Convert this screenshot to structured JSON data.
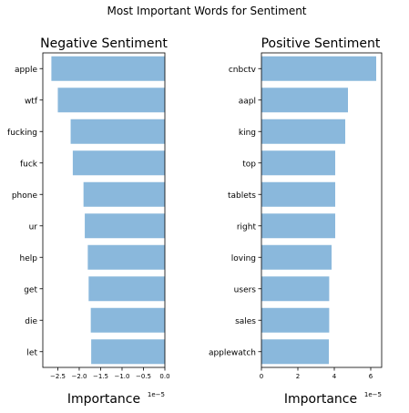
{
  "figure_title": "Most Important Words for Sentiment",
  "bar_color": "#8ab8dc",
  "chart_data": [
    {
      "type": "bar",
      "orientation": "horizontal",
      "title": "Negative Sentiment",
      "xlabel": "Importance",
      "ylabel": "",
      "offset_text": "1e−5",
      "categories": [
        "apple",
        "wtf",
        "fucking",
        "fuck",
        "phone",
        "ur",
        "help",
        "get",
        "die",
        "let"
      ],
      "values": [
        -2.65,
        -2.5,
        -2.2,
        -2.15,
        -1.9,
        -1.87,
        -1.8,
        -1.78,
        -1.73,
        -1.72
      ],
      "xlim": [
        -2.85,
        0.0
      ],
      "xticks": [
        -2.5,
        -2.0,
        -1.5,
        -1.0,
        -0.5,
        0.0
      ],
      "xtick_labels": [
        "−2.5",
        "−2.0",
        "−1.5",
        "−1.0",
        "−0.5",
        "0.0"
      ]
    },
    {
      "type": "bar",
      "orientation": "horizontal",
      "title": "Positive Sentiment",
      "xlabel": "Importance",
      "ylabel": "",
      "offset_text": "1e−5",
      "categories": [
        "cnbctv",
        "aapl",
        "king",
        "top",
        "tablets",
        "right",
        "loving",
        "users",
        "sales",
        "applewatch"
      ],
      "values": [
        6.3,
        4.75,
        4.6,
        4.05,
        4.05,
        4.05,
        3.85,
        3.72,
        3.72,
        3.7
      ],
      "xlim": [
        0.0,
        6.6
      ],
      "xticks": [
        0,
        2,
        4,
        6
      ],
      "xtick_labels": [
        "0",
        "2",
        "4",
        "6"
      ]
    }
  ]
}
